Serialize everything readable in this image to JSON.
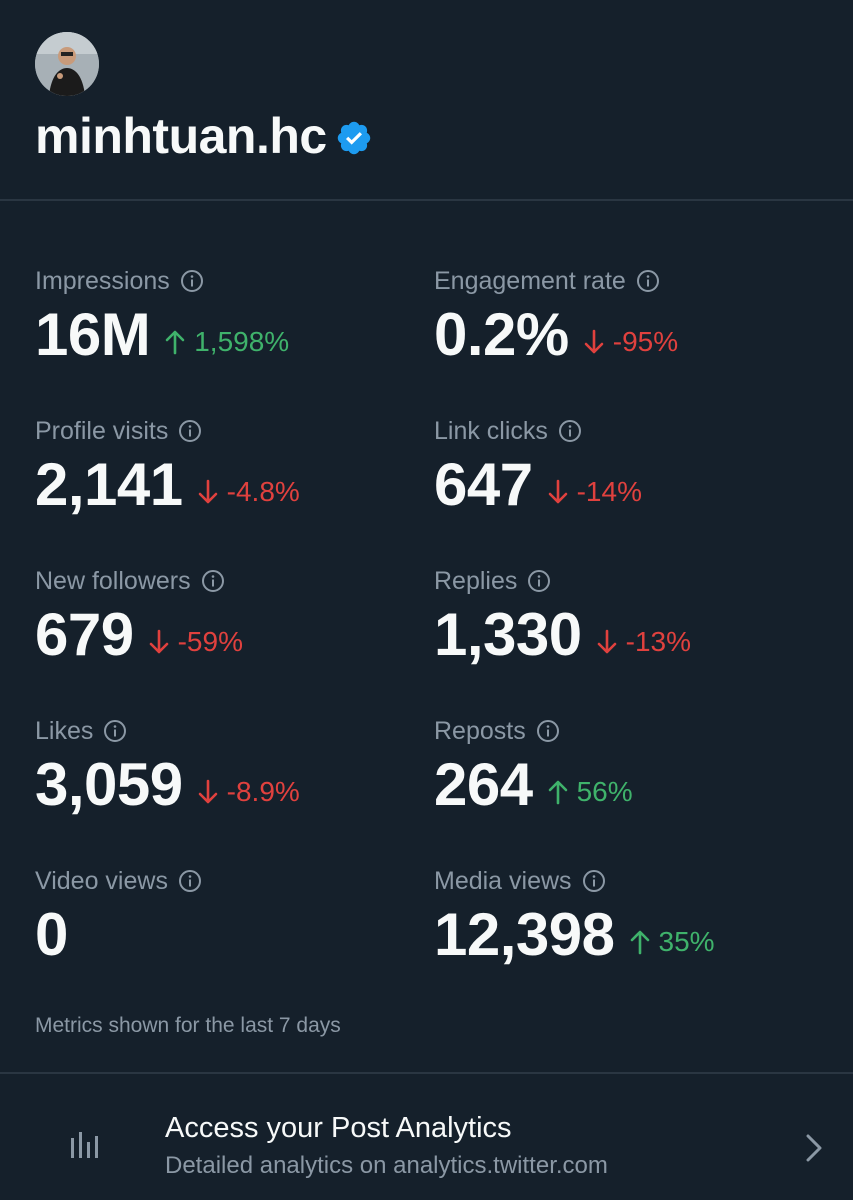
{
  "profile": {
    "username": "minhtuan.hc",
    "verified_color": "#1d9bf0"
  },
  "metrics": [
    {
      "label": "Impressions",
      "value": "16M",
      "change": "1,598%",
      "trend": "up"
    },
    {
      "label": "Engagement rate",
      "value": "0.2%",
      "change": "-95%",
      "trend": "down"
    },
    {
      "label": "Profile visits",
      "value": "2,141",
      "change": "-4.8%",
      "trend": "down"
    },
    {
      "label": "Link clicks",
      "value": "647",
      "change": "-14%",
      "trend": "down"
    },
    {
      "label": "New followers",
      "value": "679",
      "change": "-59%",
      "trend": "down"
    },
    {
      "label": "Replies",
      "value": "1,330",
      "change": "-13%",
      "trend": "down"
    },
    {
      "label": "Likes",
      "value": "3,059",
      "change": "-8.9%",
      "trend": "down"
    },
    {
      "label": "Reposts",
      "value": "264",
      "change": "56%",
      "trend": "up"
    },
    {
      "label": "Video views",
      "value": "0",
      "change": "",
      "trend": "none"
    },
    {
      "label": "Media views",
      "value": "12,398",
      "change": "35%",
      "trend": "up"
    }
  ],
  "footnote": "Metrics shown for the last 7 days",
  "analytics_link": {
    "title": "Access your Post Analytics",
    "subtitle": "Detailed analytics on analytics.twitter.com",
    "icon": "bar-chart-icon"
  },
  "colors": {
    "background": "#15202b",
    "up": "#3fb26b",
    "down": "#e0413e",
    "muted": "#8b98a5"
  }
}
